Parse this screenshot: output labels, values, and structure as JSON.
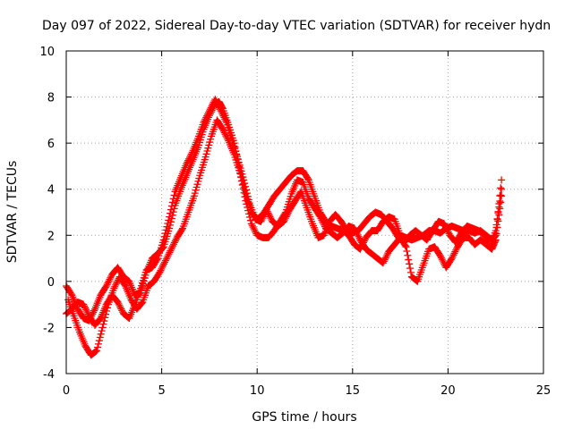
{
  "chart_data": {
    "type": "scatter",
    "title": "Day 097 of 2022, Sidereal Day-to-day VTEC variation (SDTVAR) for receiver hydn",
    "xlabel": "GPS time / hours",
    "ylabel": "SDTVAR / TECUs",
    "xlim": [
      0,
      25
    ],
    "ylim": [
      -4,
      10
    ],
    "xticks": [
      0,
      5,
      10,
      15,
      20,
      25
    ],
    "yticks": [
      -4,
      -2,
      0,
      2,
      4,
      6,
      8,
      10
    ],
    "grid": true,
    "marker": "+",
    "color": "#ff0000",
    "series": [
      {
        "name": "trace-a",
        "points": [
          [
            0.0,
            -0.2
          ],
          [
            0.3,
            -0.6
          ],
          [
            0.6,
            -1.2
          ],
          [
            0.9,
            -1.6
          ],
          [
            1.2,
            -1.7
          ],
          [
            1.5,
            -1.2
          ],
          [
            1.8,
            -0.6
          ],
          [
            2.1,
            -0.2
          ],
          [
            2.4,
            0.3
          ],
          [
            2.7,
            0.6
          ],
          [
            3.0,
            0.2
          ],
          [
            3.3,
            0.0
          ],
          [
            3.6,
            -0.6
          ],
          [
            3.9,
            -0.5
          ],
          [
            4.2,
            0.4
          ],
          [
            4.5,
            1.0
          ],
          [
            4.8,
            1.2
          ],
          [
            5.1,
            1.5
          ],
          [
            5.4,
            2.3
          ],
          [
            5.7,
            3.3
          ],
          [
            6.0,
            4.0
          ],
          [
            6.3,
            4.6
          ],
          [
            6.6,
            5.2
          ],
          [
            6.9,
            5.8
          ],
          [
            7.2,
            6.6
          ],
          [
            7.5,
            7.2
          ],
          [
            7.8,
            7.7
          ],
          [
            8.0,
            7.8
          ],
          [
            8.2,
            7.5
          ],
          [
            8.5,
            6.8
          ],
          [
            8.8,
            6.0
          ],
          [
            9.1,
            4.8
          ],
          [
            9.4,
            3.8
          ],
          [
            9.7,
            3.0
          ],
          [
            10.0,
            2.7
          ],
          [
            10.3,
            2.9
          ],
          [
            10.6,
            3.3
          ],
          [
            10.9,
            3.7
          ],
          [
            11.2,
            4.0
          ],
          [
            11.5,
            4.3
          ],
          [
            11.8,
            4.6
          ],
          [
            12.1,
            4.8
          ],
          [
            12.4,
            4.8
          ],
          [
            12.7,
            4.4
          ],
          [
            13.0,
            3.7
          ],
          [
            13.3,
            3.0
          ],
          [
            13.6,
            2.6
          ],
          [
            13.9,
            2.4
          ],
          [
            14.2,
            2.3
          ],
          [
            14.5,
            2.2
          ],
          [
            14.8,
            2.0
          ],
          [
            15.1,
            1.6
          ],
          [
            15.4,
            1.4
          ],
          [
            15.7,
            1.9
          ],
          [
            16.0,
            2.2
          ],
          [
            16.3,
            2.2
          ],
          [
            16.6,
            2.6
          ],
          [
            16.9,
            2.8
          ],
          [
            17.2,
            2.7
          ],
          [
            17.5,
            2.0
          ],
          [
            17.8,
            1.9
          ],
          [
            18.1,
            1.8
          ],
          [
            18.4,
            1.9
          ],
          [
            18.7,
            2.0
          ],
          [
            19.0,
            2.2
          ],
          [
            19.3,
            2.2
          ],
          [
            19.6,
            2.1
          ],
          [
            19.9,
            2.3
          ],
          [
            20.2,
            2.4
          ],
          [
            20.5,
            2.3
          ],
          [
            20.8,
            2.2
          ],
          [
            21.1,
            2.2
          ],
          [
            21.4,
            2.1
          ],
          [
            21.7,
            2.2
          ],
          [
            22.0,
            2.0
          ],
          [
            22.3,
            1.8
          ],
          [
            22.5,
            2.0
          ],
          [
            22.8,
            4.4
          ]
        ]
      },
      {
        "name": "trace-b",
        "points": [
          [
            0.1,
            -0.8
          ],
          [
            0.4,
            -1.5
          ],
          [
            0.7,
            -2.2
          ],
          [
            1.0,
            -2.8
          ],
          [
            1.3,
            -3.2
          ],
          [
            1.6,
            -3.0
          ],
          [
            1.9,
            -2.0
          ],
          [
            2.2,
            -1.0
          ],
          [
            2.5,
            -0.3
          ],
          [
            2.8,
            0.2
          ],
          [
            3.1,
            -0.2
          ],
          [
            3.4,
            -0.8
          ],
          [
            3.7,
            -1.2
          ],
          [
            4.0,
            -0.9
          ],
          [
            4.3,
            -0.2
          ],
          [
            4.6,
            0.0
          ],
          [
            4.9,
            0.4
          ],
          [
            5.2,
            0.9
          ],
          [
            5.5,
            1.4
          ],
          [
            5.8,
            1.9
          ],
          [
            6.1,
            2.3
          ],
          [
            6.4,
            3.0
          ],
          [
            6.7,
            3.7
          ],
          [
            7.0,
            4.6
          ],
          [
            7.3,
            5.4
          ],
          [
            7.6,
            6.3
          ],
          [
            7.9,
            7.0
          ],
          [
            8.2,
            6.6
          ],
          [
            8.5,
            6.1
          ],
          [
            8.8,
            5.5
          ],
          [
            9.1,
            4.7
          ],
          [
            9.4,
            3.5
          ],
          [
            9.7,
            2.5
          ],
          [
            10.0,
            2.0
          ],
          [
            10.3,
            1.9
          ],
          [
            10.6,
            1.9
          ],
          [
            10.9,
            2.2
          ],
          [
            11.2,
            2.6
          ],
          [
            11.5,
            3.0
          ],
          [
            11.8,
            3.8
          ],
          [
            12.1,
            4.4
          ],
          [
            12.4,
            4.3
          ],
          [
            12.7,
            3.6
          ],
          [
            13.0,
            3.2
          ],
          [
            13.3,
            2.8
          ],
          [
            13.6,
            2.3
          ],
          [
            13.9,
            2.1
          ],
          [
            14.2,
            1.9
          ],
          [
            14.5,
            2.1
          ],
          [
            14.8,
            2.4
          ],
          [
            15.1,
            2.3
          ],
          [
            15.4,
            1.8
          ],
          [
            15.7,
            1.4
          ],
          [
            16.0,
            1.2
          ],
          [
            16.3,
            1.0
          ],
          [
            16.6,
            0.8
          ],
          [
            16.9,
            1.3
          ],
          [
            17.2,
            1.6
          ],
          [
            17.5,
            1.9
          ],
          [
            17.8,
            1.5
          ],
          [
            18.1,
            0.2
          ],
          [
            18.4,
            0.0
          ],
          [
            18.7,
            0.7
          ],
          [
            19.0,
            1.4
          ],
          [
            19.3,
            1.5
          ],
          [
            19.6,
            1.1
          ],
          [
            19.9,
            0.6
          ],
          [
            20.2,
            1.0
          ],
          [
            20.5,
            1.5
          ],
          [
            20.8,
            1.9
          ],
          [
            21.1,
            1.9
          ],
          [
            21.4,
            1.6
          ],
          [
            21.7,
            1.8
          ],
          [
            22.0,
            1.6
          ],
          [
            22.3,
            1.4
          ],
          [
            22.5,
            1.8
          ],
          [
            22.8,
            3.7
          ]
        ]
      },
      {
        "name": "trace-c",
        "points": [
          [
            0.0,
            -1.4
          ],
          [
            0.3,
            -1.2
          ],
          [
            0.6,
            -0.9
          ],
          [
            0.9,
            -1.0
          ],
          [
            1.2,
            -1.5
          ],
          [
            1.5,
            -1.9
          ],
          [
            1.8,
            -1.6
          ],
          [
            2.1,
            -1.0
          ],
          [
            2.4,
            -0.6
          ],
          [
            2.7,
            -0.9
          ],
          [
            3.0,
            -1.4
          ],
          [
            3.3,
            -1.6
          ],
          [
            3.6,
            -1.0
          ],
          [
            3.9,
            -0.3
          ],
          [
            4.2,
            0.5
          ],
          [
            4.5,
            0.6
          ],
          [
            4.8,
            1.0
          ],
          [
            5.1,
            1.8
          ],
          [
            5.4,
            2.8
          ],
          [
            5.7,
            3.9
          ],
          [
            6.0,
            4.5
          ],
          [
            6.3,
            5.1
          ],
          [
            6.6,
            5.6
          ],
          [
            6.9,
            6.2
          ],
          [
            7.2,
            6.9
          ],
          [
            7.5,
            7.4
          ],
          [
            7.8,
            7.9
          ],
          [
            8.1,
            7.4
          ],
          [
            8.4,
            6.9
          ],
          [
            8.7,
            6.1
          ],
          [
            9.0,
            5.3
          ],
          [
            9.3,
            4.4
          ],
          [
            9.6,
            3.4
          ],
          [
            9.9,
            2.7
          ],
          [
            10.2,
            2.6
          ],
          [
            10.5,
            3.1
          ],
          [
            10.8,
            2.6
          ],
          [
            11.1,
            2.4
          ],
          [
            11.4,
            2.6
          ],
          [
            11.7,
            3.1
          ],
          [
            12.0,
            3.5
          ],
          [
            12.3,
            3.9
          ],
          [
            12.6,
            3.2
          ],
          [
            12.9,
            2.5
          ],
          [
            13.2,
            1.9
          ],
          [
            13.5,
            2.0
          ],
          [
            13.8,
            2.6
          ],
          [
            14.1,
            2.9
          ],
          [
            14.4,
            2.6
          ],
          [
            14.7,
            2.2
          ],
          [
            15.0,
            2.1
          ],
          [
            15.3,
            2.2
          ],
          [
            15.6,
            2.5
          ],
          [
            15.9,
            2.8
          ],
          [
            16.2,
            3.0
          ],
          [
            16.5,
            2.9
          ],
          [
            16.8,
            2.6
          ],
          [
            17.1,
            2.3
          ],
          [
            17.4,
            1.9
          ],
          [
            17.7,
            1.7
          ],
          [
            18.0,
            2.0
          ],
          [
            18.3,
            2.2
          ],
          [
            18.6,
            2.0
          ],
          [
            18.9,
            1.8
          ],
          [
            19.2,
            2.2
          ],
          [
            19.5,
            2.6
          ],
          [
            19.8,
            2.5
          ],
          [
            20.1,
            2.0
          ],
          [
            20.4,
            1.7
          ],
          [
            20.7,
            2.1
          ],
          [
            21.0,
            2.4
          ],
          [
            21.3,
            2.3
          ],
          [
            21.6,
            2.2
          ],
          [
            21.9,
            2.0
          ],
          [
            22.2,
            1.5
          ],
          [
            22.5,
            2.2
          ],
          [
            22.8,
            4.0
          ]
        ]
      }
    ]
  }
}
